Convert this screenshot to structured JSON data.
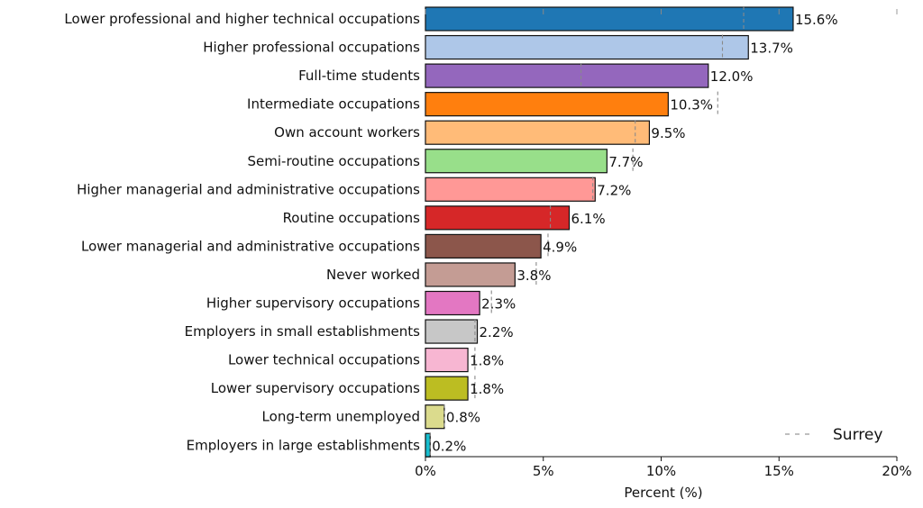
{
  "chart_data": {
    "type": "bar",
    "orientation": "horizontal",
    "title": "",
    "xlabel": "Percent (%)",
    "ylabel": "",
    "xlim": [
      0,
      20
    ],
    "xticks": [
      0,
      5,
      10,
      15,
      20
    ],
    "xtick_labels": [
      "0%",
      "5%",
      "10%",
      "15%",
      "20%"
    ],
    "grid": false,
    "legend": {
      "position": "bottom-right",
      "entries": [
        {
          "name": "Surrey",
          "style": "dashed"
        }
      ]
    },
    "categories": [
      "Lower professional and higher technical occupations",
      "Higher professional occupations",
      "Full-time students",
      "Intermediate occupations",
      "Own account workers",
      "Semi-routine occupations",
      "Higher managerial and administrative occupations",
      "Routine occupations",
      "Lower managerial and administrative occupations",
      "Never worked",
      "Higher supervisory occupations",
      "Employers in small establishments",
      "Lower technical occupations",
      "Lower supervisory occupations",
      "Long-term unemployed",
      "Employers in large establishments"
    ],
    "values": [
      15.6,
      13.7,
      12.0,
      10.3,
      9.5,
      7.7,
      7.2,
      6.1,
      4.9,
      3.8,
      2.3,
      2.2,
      1.8,
      1.8,
      0.8,
      0.2
    ],
    "value_labels": [
      "15.6%",
      "13.7%",
      "12.0%",
      "10.3%",
      "9.5%",
      "7.7%",
      "7.2%",
      "6.1%",
      "4.9%",
      "3.8%",
      "2.3%",
      "2.2%",
      "1.8%",
      "1.8%",
      "0.8%",
      "0.2%"
    ],
    "colors": [
      "#1f77b4",
      "#aec7e8",
      "#9467bd",
      "#ff7f0e",
      "#ffbb78",
      "#98df8a",
      "#ff9896",
      "#d62728",
      "#8c564b",
      "#c49c94",
      "#e377c2",
      "#c7c7c7",
      "#f7b6d2",
      "#bcbd22",
      "#dbdb8d",
      "#17becf"
    ],
    "series": [
      {
        "name": "Surrey",
        "style": "dashed",
        "values": [
          13.5,
          12.6,
          6.6,
          12.4,
          8.9,
          8.8,
          7.1,
          5.3,
          5.2,
          4.7,
          2.8,
          2.1,
          2.1,
          2.1,
          0.8,
          0.2
        ]
      }
    ]
  }
}
